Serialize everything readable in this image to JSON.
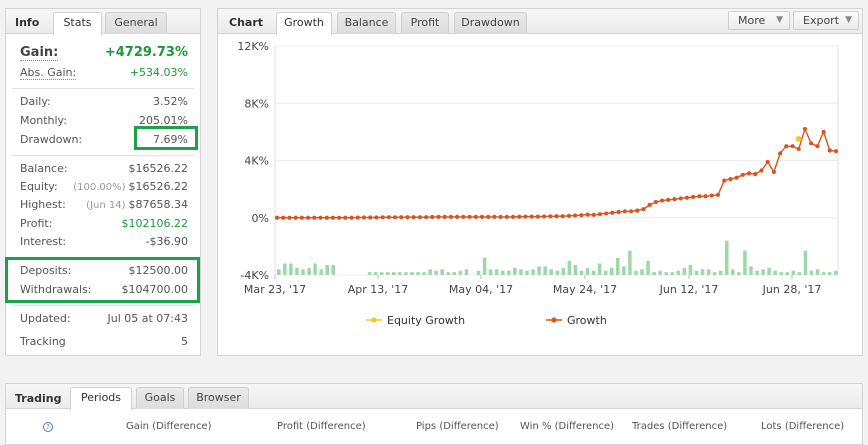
{
  "info": {
    "tabs": [
      {
        "label": "Info"
      },
      {
        "label": "Stats"
      },
      {
        "label": "General"
      }
    ],
    "gain": {
      "label": "Gain:",
      "value": "+4729.73%"
    },
    "abs_gain": {
      "label": "Abs. Gain:",
      "value": "+534.03%"
    },
    "daily": {
      "label": "Daily:",
      "value": "3.52%"
    },
    "monthly": {
      "label": "Monthly:",
      "value": "205.01%"
    },
    "drawdown": {
      "label": "Drawdown:",
      "value": "7.69%"
    },
    "balance": {
      "label": "Balance:",
      "value": "$16526.22"
    },
    "equity": {
      "label": "Equity:",
      "paren": "(100.00%)",
      "value": "$16526.22"
    },
    "highest": {
      "label": "Highest:",
      "paren": "(Jun 14)",
      "value": "$87658.34"
    },
    "profit": {
      "label": "Profit:",
      "value": "$102106.22"
    },
    "interest": {
      "label": "Interest:",
      "value": "-$36.90"
    },
    "deposits": {
      "label": "Deposits:",
      "value": "$12500.00"
    },
    "withdrawals": {
      "label": "Withdrawals:",
      "value": "$104700.00"
    },
    "updated": {
      "label": "Updated:",
      "value": "Jul 05 at 07:43"
    },
    "tracking": {
      "label": "Tracking",
      "value": "5"
    }
  },
  "chart_panel": {
    "title": "Chart",
    "tabs": [
      {
        "label": "Growth"
      },
      {
        "label": "Balance"
      },
      {
        "label": "Profit"
      },
      {
        "label": "Drawdown"
      }
    ],
    "more_label": "More",
    "export_label": "Export"
  },
  "chart_data": {
    "type": "line",
    "ylim": [
      -4000,
      12000
    ],
    "yticks": [
      "12K%",
      "8K%",
      "4K%",
      "0%",
      "-4K%"
    ],
    "xticks": [
      "Mar 23, '17",
      "Apr 13, '17",
      "May 04, '17",
      "May 24, '17",
      "Jun 12, '17",
      "Jun 28, '17"
    ],
    "legend": [
      {
        "name": "Equity Growth",
        "color": "#f4c430"
      },
      {
        "name": "Growth",
        "color": "#d9541e"
      }
    ],
    "series": [
      {
        "name": "Growth",
        "color": "#d9541e",
        "values": [
          0,
          0,
          0,
          0,
          0,
          0,
          0,
          0,
          0,
          0,
          0,
          0,
          0,
          10,
          20,
          20,
          20,
          30,
          40,
          30,
          40,
          40,
          40,
          40,
          40,
          50,
          60,
          60,
          60,
          60,
          60,
          60,
          60,
          60,
          60,
          60,
          60,
          60,
          60,
          70,
          80,
          80,
          80,
          90,
          100,
          110,
          110,
          130,
          160,
          180,
          220,
          200,
          250,
          300,
          350,
          400,
          450,
          450,
          500,
          600,
          900,
          1100,
          1200,
          1250,
          1300,
          1350,
          1400,
          1450,
          1500,
          1500,
          1550,
          1600,
          2600,
          2700,
          2800,
          3000,
          3100,
          3050,
          3300,
          3900,
          3200,
          4500,
          5000,
          5000,
          4800,
          6200,
          5200,
          5000,
          6000,
          4700,
          4650
        ]
      },
      {
        "name": "Equity Growth",
        "color": "#f4c430",
        "values": [
          [
            84,
            5500
          ]
        ]
      }
    ],
    "bars": {
      "color": "#9fd8a8",
      "values": [
        400,
        800,
        800,
        500,
        400,
        500,
        800,
        400,
        700,
        700,
        0,
        0,
        0,
        0,
        0,
        200,
        200,
        200,
        200,
        200,
        200,
        200,
        200,
        200,
        200,
        400,
        300,
        400,
        200,
        200,
        300,
        400,
        0,
        300,
        1200,
        400,
        400,
        300,
        300,
        500,
        400,
        300,
        400,
        600,
        600,
        400,
        300,
        500,
        1000,
        700,
        300,
        500,
        300,
        800,
        300,
        500,
        1200,
        600,
        1700,
        300,
        400,
        1000,
        200,
        300,
        200,
        200,
        300,
        500,
        700,
        300,
        400,
        400,
        200,
        300,
        2400,
        400,
        200,
        1700,
        600,
        300,
        400,
        500,
        300,
        200,
        200,
        300,
        200,
        1700,
        300,
        400,
        200,
        200,
        300
      ]
    }
  },
  "trading": {
    "title": "Trading",
    "tabs": [
      {
        "label": "Periods"
      },
      {
        "label": "Goals"
      },
      {
        "label": "Browser"
      }
    ],
    "columns": [
      "Gain (Difference)",
      "Profit (Difference)",
      "Pips (Difference)",
      "Win % (Difference)",
      "Trades (Difference)",
      "Lots (Difference)"
    ],
    "help_icon": "?"
  }
}
